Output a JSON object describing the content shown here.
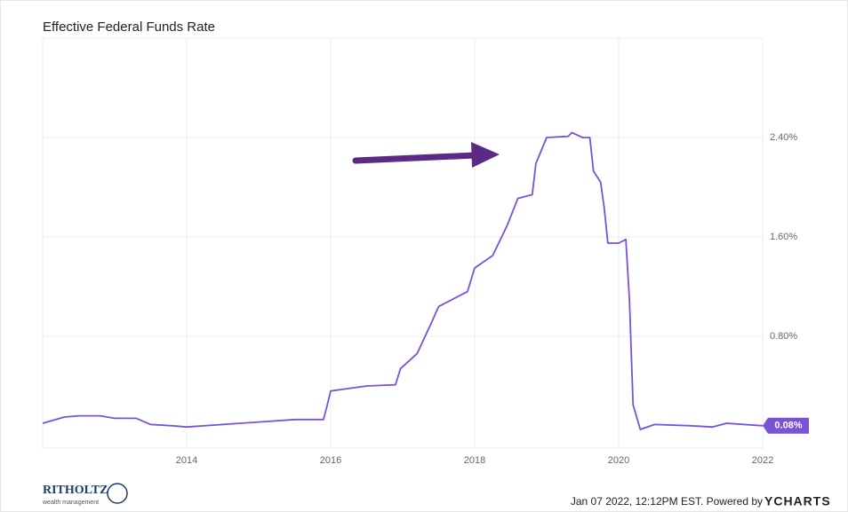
{
  "chart_data": {
    "type": "line",
    "title": "Effective Federal Funds Rate",
    "x": [
      2012.0,
      2012.3,
      2012.5,
      2012.8,
      2013.0,
      2013.3,
      2013.5,
      2013.8,
      2014.0,
      2014.5,
      2015.0,
      2015.5,
      2015.9,
      2015.95,
      2016.0,
      2016.5,
      2016.9,
      2016.97,
      2017.2,
      2017.4,
      2017.5,
      2017.9,
      2018.0,
      2018.25,
      2018.45,
      2018.6,
      2018.8,
      2018.85,
      2019.0,
      2019.3,
      2019.35,
      2019.5,
      2019.6,
      2019.65,
      2019.75,
      2019.8,
      2019.85,
      2020.0,
      2020.1,
      2020.15,
      2020.2,
      2020.3,
      2020.5,
      2021.0,
      2021.3,
      2021.5,
      2022.0
    ],
    "series": [
      {
        "name": "Effective Federal Funds Rate",
        "color": "#7a52d6",
        "values": [
          0.1,
          0.15,
          0.16,
          0.16,
          0.14,
          0.14,
          0.09,
          0.08,
          0.07,
          0.09,
          0.11,
          0.13,
          0.13,
          0.24,
          0.36,
          0.4,
          0.41,
          0.54,
          0.66,
          0.91,
          1.04,
          1.16,
          1.35,
          1.45,
          1.69,
          1.91,
          1.94,
          2.19,
          2.4,
          2.41,
          2.44,
          2.4,
          2.4,
          2.13,
          2.04,
          1.83,
          1.55,
          1.55,
          1.58,
          1.09,
          0.25,
          0.05,
          0.09,
          0.08,
          0.07,
          0.1,
          0.08
        ]
      }
    ],
    "last_value_label": "0.08%",
    "xlim": [
      2012,
      2022
    ],
    "xticks": [
      2014,
      2016,
      2018,
      2020,
      2022
    ],
    "ylim": [
      -0.1,
      3.2
    ],
    "yticks": [
      {
        "value": 0.8,
        "label": "0.80%"
      },
      {
        "value": 1.6,
        "label": "1.60%"
      },
      {
        "value": 2.4,
        "label": "2.40%"
      }
    ],
    "grid": true,
    "footer": {
      "timestamp": "Jan 07 2022, 12:12PM EST. Powered by",
      "brand": "YCHARTS",
      "logo": "RITHOLTZ",
      "logo_sub": "wealth management"
    }
  }
}
